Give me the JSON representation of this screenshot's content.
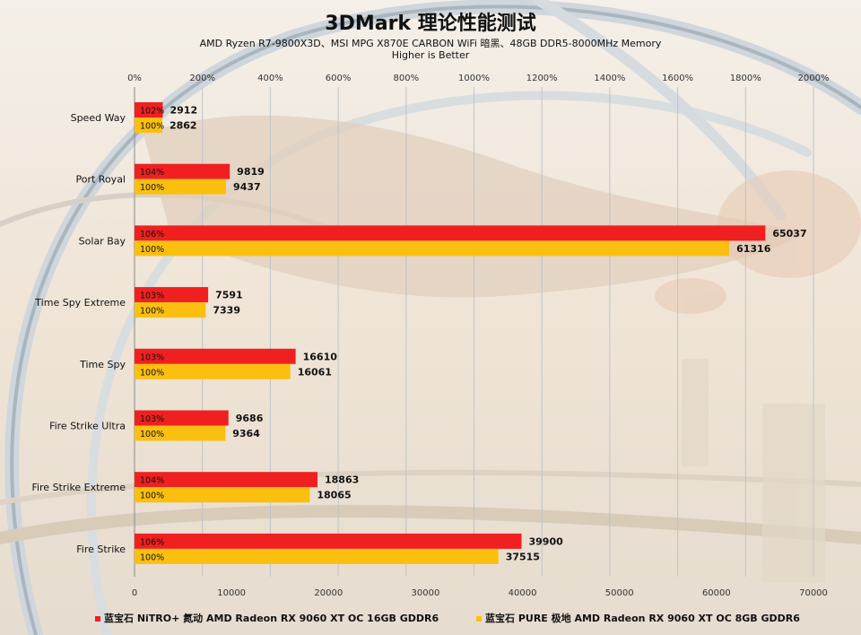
{
  "title": "3DMark 理论性能测试",
  "subtitle": "AMD Ryzen R7-9800X3D、MSI MPG X870E CARBON WiFi 暗黑、48GB DDR5-8000MHz Memory",
  "subtitle2": "Higher is Better",
  "colors": {
    "series1": "#f02020",
    "series2": "#fbbf10",
    "label_text": "#111111"
  },
  "chart_data": {
    "type": "bar",
    "orientation": "horizontal",
    "categories": [
      "Speed Way",
      "Port Royal",
      "Solar Bay",
      "Time Spy Extreme",
      "Time Spy",
      "Fire Strike Ultra",
      "Fire Strike Extreme",
      "Fire Strike"
    ],
    "series": [
      {
        "name": "蓝宝石 NiTRO+ 氮动 AMD Radeon RX 9060 XT OC 16GB GDDR6",
        "values": [
          2912,
          9819,
          65037,
          7591,
          16610,
          9686,
          18863,
          39900
        ],
        "percent_labels": [
          "102%",
          "104%",
          "106%",
          "103%",
          "103%",
          "103%",
          "104%",
          "106%"
        ]
      },
      {
        "name": "蓝宝石 PURE 极地 AMD Radeon RX 9060 XT OC 8GB GDDR6",
        "values": [
          2862,
          9437,
          61316,
          7339,
          16061,
          9364,
          18065,
          37515
        ],
        "percent_labels": [
          "100%",
          "100%",
          "100%",
          "100%",
          "100%",
          "100%",
          "100%",
          "100%"
        ]
      }
    ],
    "x_axis_bottom": {
      "ticks": [
        0,
        10000,
        20000,
        30000,
        40000,
        50000,
        60000,
        70000
      ],
      "range": [
        0,
        70000
      ]
    },
    "x_axis_top": {
      "tick_labels": [
        "0%",
        "200%",
        "400%",
        "600%",
        "800%",
        "1000%",
        "1200%",
        "1400%",
        "1600%",
        "1800%",
        "2000%"
      ],
      "range": [
        0,
        2000
      ]
    },
    "grid": true,
    "legend_position": "bottom"
  }
}
